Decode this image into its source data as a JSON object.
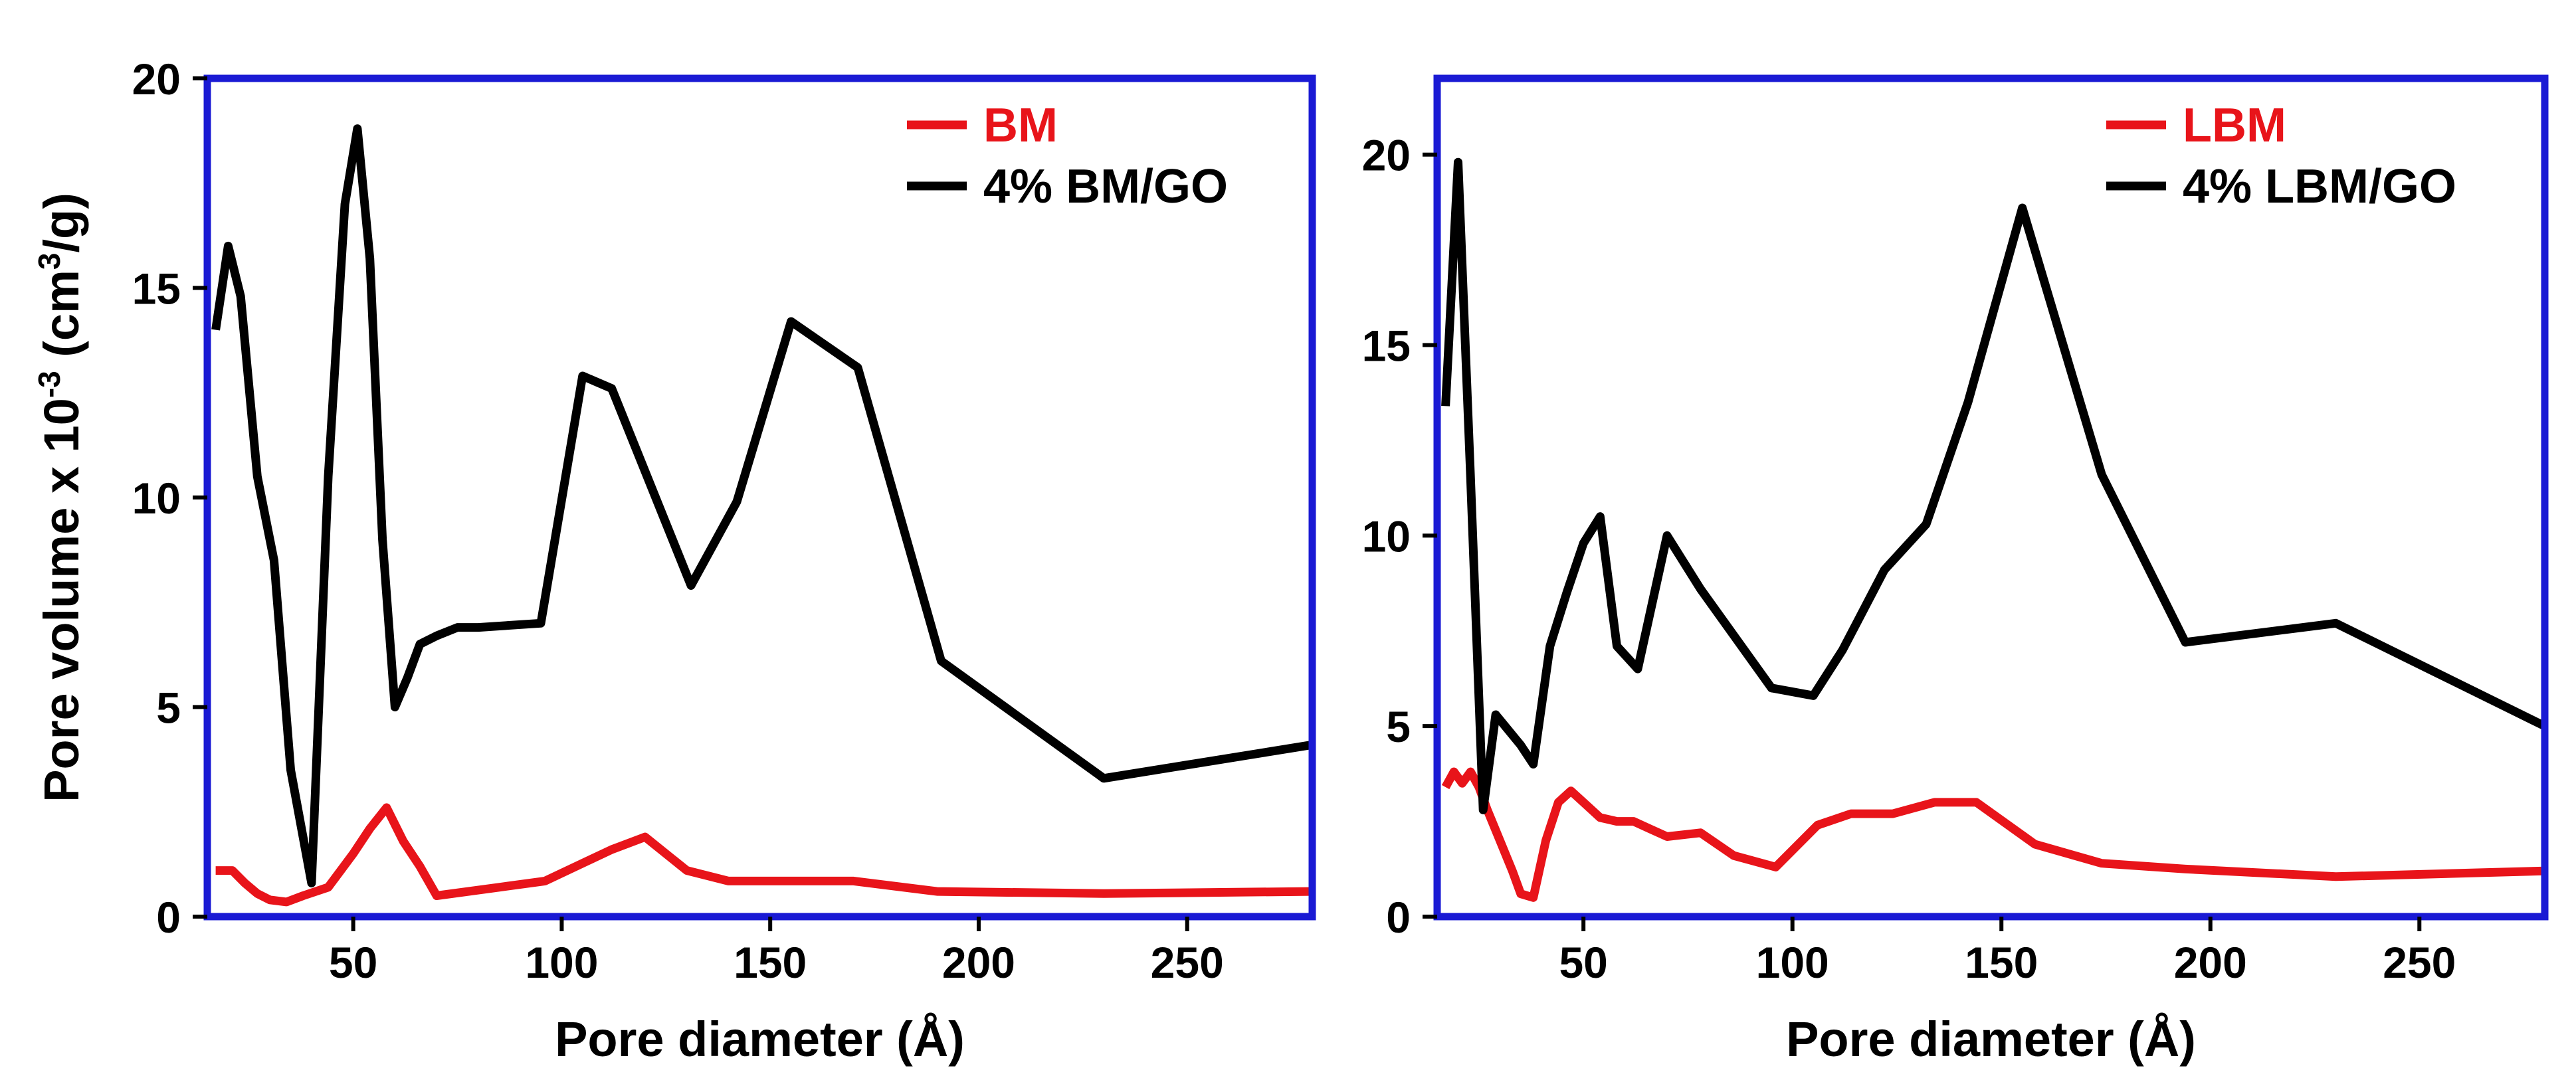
{
  "chart_data": [
    {
      "type": "line",
      "xlabel": "Pore diameter (Å)",
      "ylabel_main": "Pore volume x 10",
      "ylabel_exp": "-3",
      "ylabel_unit_open": " (cm",
      "ylabel_unit_exp": "3",
      "ylabel_unit_close": "/g)",
      "xlim": [
        15,
        280
      ],
      "ylim": [
        0,
        20
      ],
      "xticks": [
        50,
        100,
        150,
        200,
        250
      ],
      "yticks": [
        0,
        5,
        10,
        15,
        20
      ],
      "legend_position": "top-right",
      "series": [
        {
          "name": "BM",
          "color": "#e8141a",
          "x": [
            17,
            21,
            24,
            27,
            30,
            34,
            38,
            44,
            50,
            54,
            58,
            62,
            66,
            70,
            85,
            96,
            112,
            120,
            130,
            140,
            170,
            190,
            230,
            280
          ],
          "y": [
            1.1,
            1.1,
            0.8,
            0.55,
            0.4,
            0.35,
            0.5,
            0.7,
            1.5,
            2.1,
            2.6,
            1.8,
            1.2,
            0.5,
            0.7,
            0.85,
            1.6,
            1.9,
            1.1,
            0.85,
            0.85,
            0.6,
            0.55,
            0.6
          ]
        },
        {
          "name": "4% BM/GO",
          "color": "#000000",
          "x": [
            17,
            20,
            23,
            27,
            31,
            35,
            40,
            44,
            48,
            51,
            54,
            57,
            60,
            63,
            66,
            70,
            75,
            80,
            95,
            105,
            112,
            131,
            142,
            155,
            171,
            191,
            230,
            280
          ],
          "y": [
            14,
            16,
            14.8,
            10.5,
            8.5,
            3.5,
            0.8,
            10.5,
            17,
            18.8,
            15.7,
            9,
            5,
            5.7,
            6.5,
            6.7,
            6.9,
            6.9,
            7,
            12.9,
            12.6,
            7.9,
            9.9,
            14.2,
            13.1,
            6.1,
            3.3,
            4.1
          ]
        }
      ]
    },
    {
      "type": "line",
      "xlabel": "Pore diameter (Å)",
      "xlim": [
        15,
        280
      ],
      "ylim": [
        0,
        22
      ],
      "xticks": [
        50,
        100,
        150,
        200,
        250
      ],
      "yticks": [
        0,
        5,
        10,
        15,
        20
      ],
      "legend_position": "top-right",
      "series": [
        {
          "name": "LBM",
          "color": "#e8141a",
          "x": [
            17,
            19,
            21,
            23,
            25,
            27,
            30,
            33,
            35,
            38,
            41,
            44,
            47,
            50,
            54,
            58,
            62,
            66,
            70,
            78,
            86,
            96,
            106,
            114,
            124,
            134,
            144,
            158,
            174,
            194,
            230,
            280
          ],
          "y": [
            3.4,
            3.8,
            3.5,
            3.8,
            3.4,
            2.8,
            2.0,
            1.2,
            0.6,
            0.5,
            2.0,
            3.0,
            3.3,
            3.0,
            2.6,
            2.5,
            2.5,
            2.3,
            2.1,
            2.2,
            1.6,
            1.3,
            2.4,
            2.7,
            2.7,
            3.0,
            3.0,
            1.9,
            1.4,
            1.25,
            1.05,
            1.2
          ]
        },
        {
          "name": "4% LBM/GO",
          "color": "#000000",
          "x": [
            17,
            20,
            23,
            26,
            29,
            32,
            35,
            38,
            42,
            46,
            50,
            54,
            58,
            63,
            70,
            78,
            95,
            105,
            112,
            122,
            132,
            142,
            155,
            174,
            194,
            230,
            280
          ],
          "y": [
            13.4,
            19.8,
            11.5,
            2.8,
            5.3,
            4.9,
            4.5,
            4.0,
            7.1,
            8.5,
            9.8,
            10.5,
            7.1,
            6.5,
            10.0,
            8.6,
            6.0,
            5.8,
            7.0,
            9.1,
            10.3,
            13.5,
            18.6,
            11.6,
            7.2,
            7.7,
            5.0
          ]
        }
      ]
    }
  ]
}
